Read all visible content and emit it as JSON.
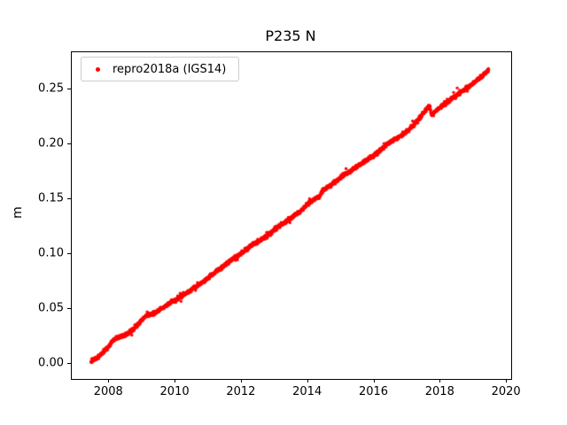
{
  "chart_data": {
    "type": "scatter",
    "title": "P235 N",
    "xlabel": "",
    "ylabel": "m",
    "xlim": [
      2006.87,
      2020.13
    ],
    "ylim": [
      -0.0135,
      0.2835
    ],
    "grid": false,
    "legend_position": "upper left",
    "xticks": [
      {
        "value": 2008,
        "label": "2008"
      },
      {
        "value": 2010,
        "label": "2010"
      },
      {
        "value": 2012,
        "label": "2012"
      },
      {
        "value": 2014,
        "label": "2014"
      },
      {
        "value": 2016,
        "label": "2016"
      },
      {
        "value": 2018,
        "label": "2018"
      },
      {
        "value": 2020,
        "label": "2020"
      }
    ],
    "yticks": [
      {
        "value": 0.0,
        "label": "0.00"
      },
      {
        "value": 0.05,
        "label": "0.05"
      },
      {
        "value": 0.1,
        "label": "0.10"
      },
      {
        "value": 0.15,
        "label": "0.15"
      },
      {
        "value": 0.2,
        "label": "0.20"
      },
      {
        "value": 0.25,
        "label": "0.25"
      }
    ],
    "series": [
      {
        "name": "repro2018a (IGS14)",
        "color": "#ff0000",
        "marker": "dot",
        "marker_radius_px": 1.7,
        "sample_interval_years": 0.004,
        "noise_std_m": 0.0008,
        "outlier_std_m": 0.0014,
        "outlier_fraction": 0.08,
        "trend_anchors": [
          [
            2007.45,
            0.002
          ],
          [
            2007.6,
            0.005
          ],
          [
            2007.8,
            0.01
          ],
          [
            2008.0,
            0.017
          ],
          [
            2008.1,
            0.021
          ],
          [
            2008.25,
            0.024
          ],
          [
            2008.45,
            0.026
          ],
          [
            2008.7,
            0.031
          ],
          [
            2008.95,
            0.039
          ],
          [
            2009.1,
            0.044
          ],
          [
            2009.35,
            0.046
          ],
          [
            2009.6,
            0.051
          ],
          [
            2009.9,
            0.057
          ],
          [
            2010.2,
            0.062
          ],
          [
            2010.5,
            0.068
          ],
          [
            2010.8,
            0.074
          ],
          [
            2011.1,
            0.081
          ],
          [
            2011.4,
            0.088
          ],
          [
            2011.7,
            0.095
          ],
          [
            2012.0,
            0.101
          ],
          [
            2012.3,
            0.108
          ],
          [
            2012.6,
            0.113
          ],
          [
            2012.9,
            0.12
          ],
          [
            2013.2,
            0.127
          ],
          [
            2013.5,
            0.133
          ],
          [
            2013.8,
            0.14
          ],
          [
            2014.1,
            0.148
          ],
          [
            2014.35,
            0.153
          ],
          [
            2014.45,
            0.158
          ],
          [
            2014.7,
            0.163
          ],
          [
            2015.0,
            0.17
          ],
          [
            2015.3,
            0.176
          ],
          [
            2015.6,
            0.182
          ],
          [
            2015.85,
            0.187
          ],
          [
            2016.1,
            0.192
          ],
          [
            2016.35,
            0.199
          ],
          [
            2016.6,
            0.204
          ],
          [
            2016.9,
            0.209
          ],
          [
            2017.2,
            0.218
          ],
          [
            2017.45,
            0.227
          ],
          [
            2017.6,
            0.233
          ],
          [
            2017.68,
            0.235
          ],
          [
            2017.72,
            0.226
          ],
          [
            2017.85,
            0.23
          ],
          [
            2018.0,
            0.234
          ],
          [
            2018.2,
            0.238
          ],
          [
            2018.5,
            0.245
          ],
          [
            2018.8,
            0.251
          ],
          [
            2019.1,
            0.258
          ],
          [
            2019.3,
            0.263
          ],
          [
            2019.45,
            0.268
          ]
        ]
      }
    ]
  }
}
